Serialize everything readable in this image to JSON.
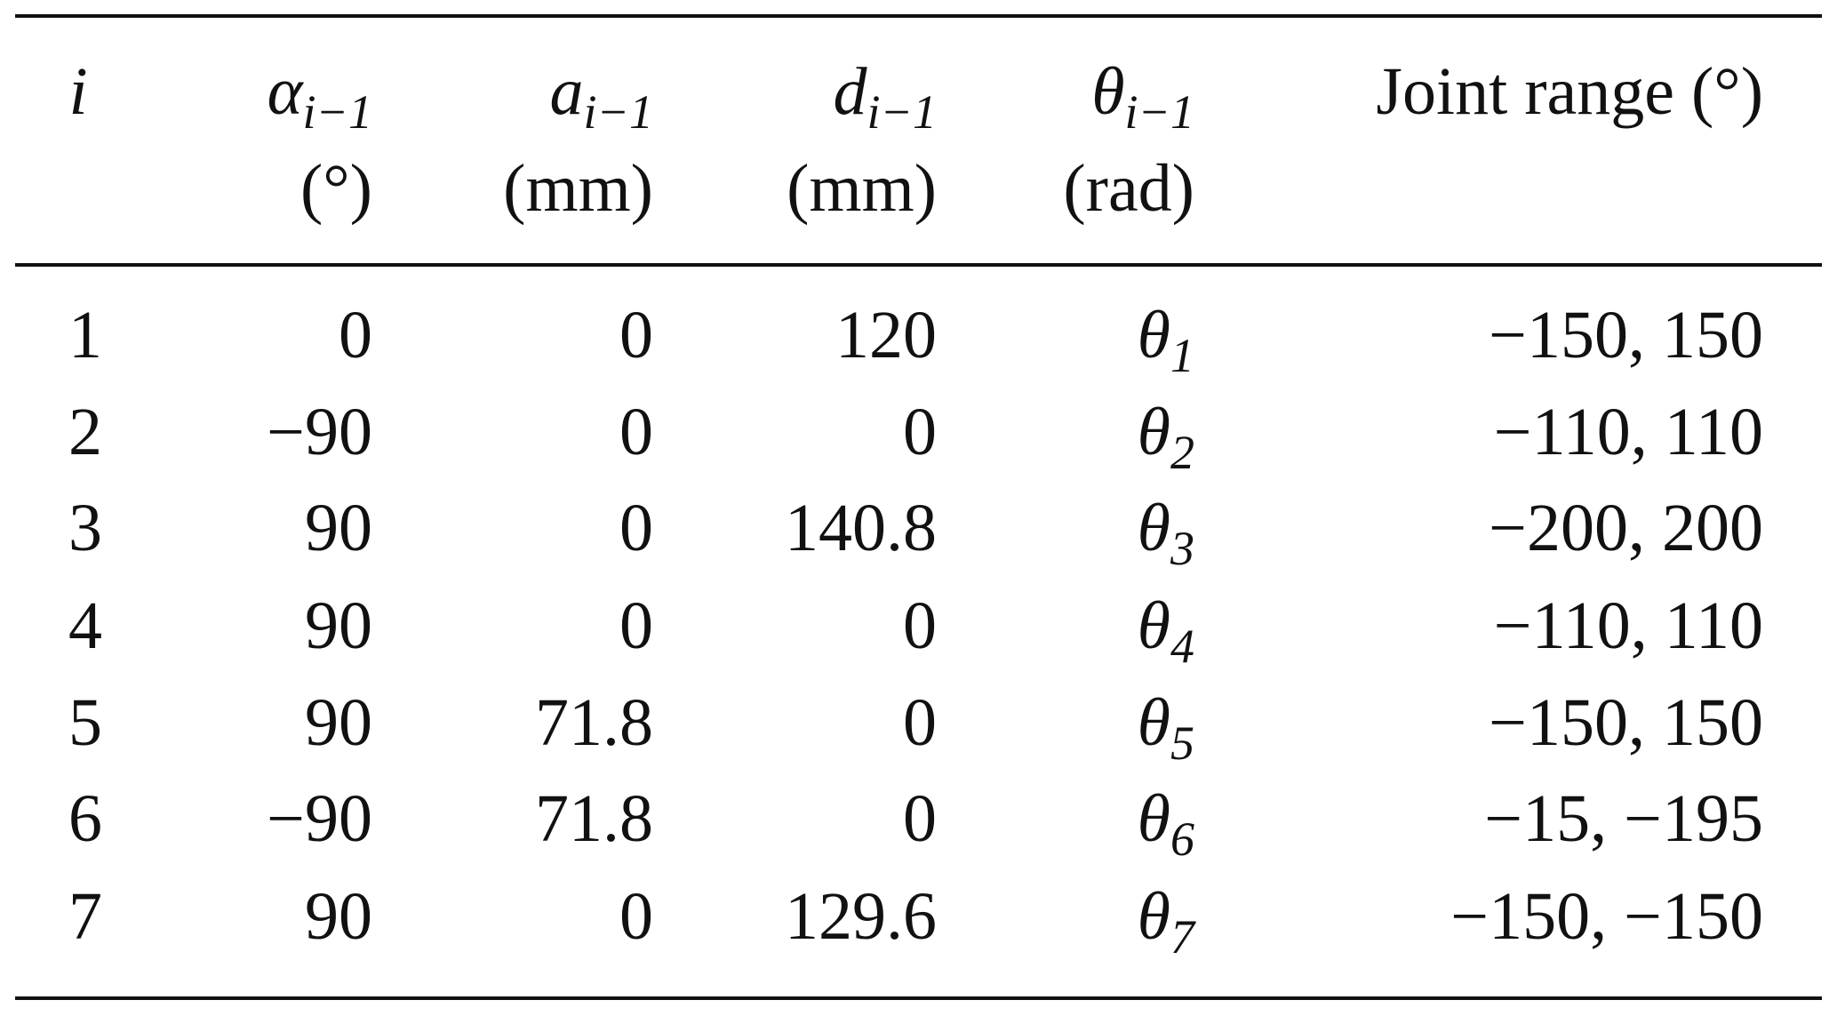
{
  "table": {
    "header": [
      {
        "symbol": "i"
      },
      {
        "symbol": "α",
        "subscript": "i−1",
        "unit": "(°)"
      },
      {
        "symbol": "a",
        "subscript": "i−1",
        "unit": "(mm)"
      },
      {
        "symbol": "d",
        "subscript": "i−1",
        "unit": "(mm)"
      },
      {
        "symbol": "θ",
        "subscript": "i−1",
        "unit": "(rad)"
      },
      {
        "text": "Joint range (°)"
      }
    ],
    "rows": [
      [
        "1",
        "0",
        "0",
        "120",
        {
          "symbol": "θ",
          "subscript": "1"
        },
        "−150, 150"
      ],
      [
        "2",
        "−90",
        "0",
        "0",
        {
          "symbol": "θ",
          "subscript": "2"
        },
        "−110, 110"
      ],
      [
        "3",
        "90",
        "0",
        "140.8",
        {
          "symbol": "θ",
          "subscript": "3"
        },
        "−200, 200"
      ],
      [
        "4",
        "90",
        "0",
        "0",
        {
          "symbol": "θ",
          "subscript": "4"
        },
        "−110, 110"
      ],
      [
        "5",
        "90",
        "71.8",
        "0",
        {
          "symbol": "θ",
          "subscript": "5"
        },
        "−150, 150"
      ],
      [
        "6",
        "−90",
        "71.8",
        "0",
        {
          "symbol": "θ",
          "subscript": "6"
        },
        "−15, −195"
      ],
      [
        "7",
        "90",
        "0",
        "129.6",
        {
          "symbol": "θ",
          "subscript": "7"
        },
        "−150, −150"
      ]
    ]
  }
}
